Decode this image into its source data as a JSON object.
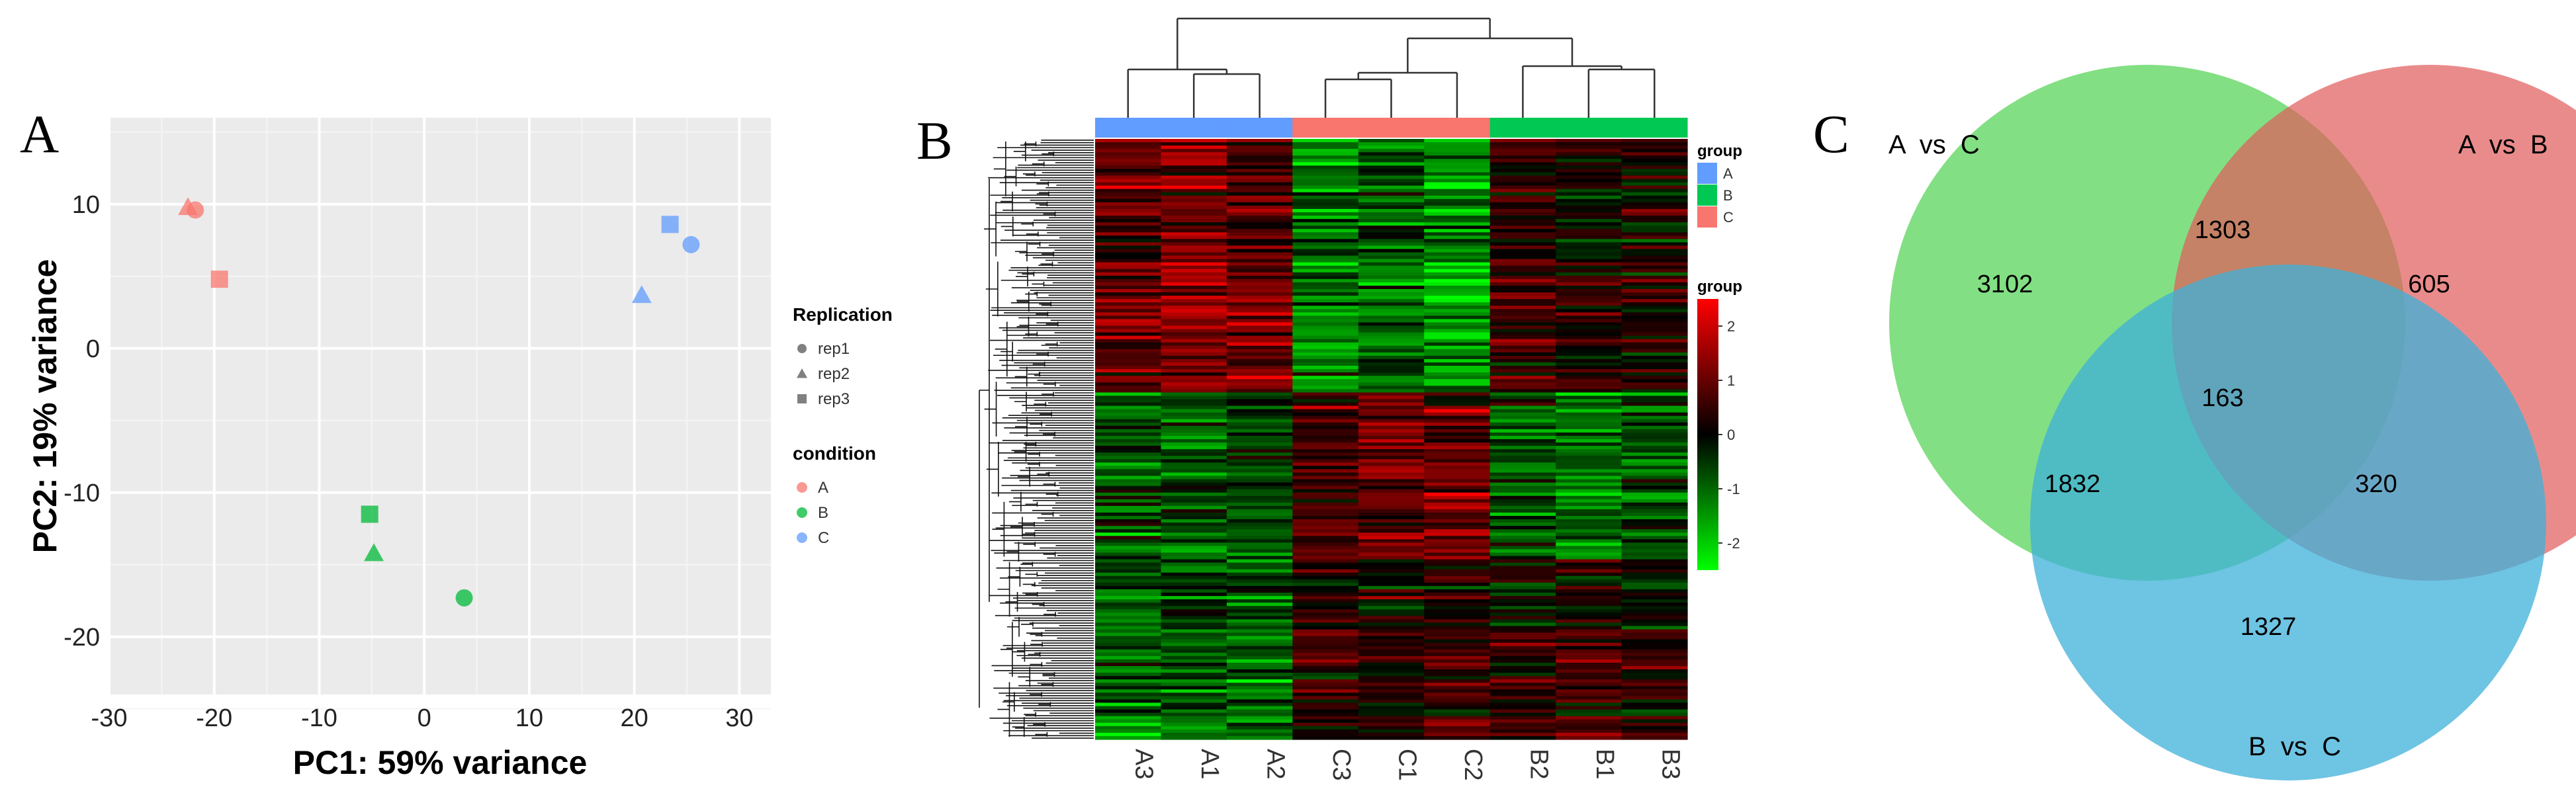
{
  "panels": {
    "a": {
      "letter": "A"
    },
    "b": {
      "letter": "B"
    },
    "c": {
      "letter": "C"
    }
  },
  "chart_data": [
    {
      "type": "scatter",
      "title": "",
      "xlabel": "PC1: 59% variance",
      "ylabel": "PC2: 19% variance",
      "xlim": [
        -30,
        33
      ],
      "ylim": [
        -24,
        16
      ],
      "xticks": [
        -30,
        -20,
        -10,
        0,
        10,
        20,
        30
      ],
      "yticks": [
        10,
        0,
        -10,
        -20
      ],
      "grid": true,
      "legend_position": "right",
      "legend_shape": {
        "title": "Replication",
        "entries": [
          {
            "label": "rep1",
            "shape": "circle"
          },
          {
            "label": "rep2",
            "shape": "triangle"
          },
          {
            "label": "rep3",
            "shape": "square"
          }
        ]
      },
      "legend_color": {
        "title": "condition",
        "entries": [
          {
            "label": "A",
            "color": "#F8766D"
          },
          {
            "label": "B",
            "color": "#00BA38"
          },
          {
            "label": "C",
            "color": "#619CFF"
          }
        ]
      },
      "points": [
        {
          "x": -22.5,
          "y": 9.8,
          "condition": "A",
          "rep": "rep2"
        },
        {
          "x": -21.8,
          "y": 9.6,
          "condition": "A",
          "rep": "rep1"
        },
        {
          "x": -19.5,
          "y": 4.8,
          "condition": "A",
          "rep": "rep3"
        },
        {
          "x": -5.2,
          "y": -11.5,
          "condition": "B",
          "rep": "rep3"
        },
        {
          "x": -4.8,
          "y": -14.2,
          "condition": "B",
          "rep": "rep2"
        },
        {
          "x": 3.8,
          "y": -17.3,
          "condition": "B",
          "rep": "rep1"
        },
        {
          "x": 20.7,
          "y": 3.7,
          "condition": "C",
          "rep": "rep2"
        },
        {
          "x": 23.4,
          "y": 8.6,
          "condition": "C",
          "rep": "rep3"
        },
        {
          "x": 25.4,
          "y": 7.2,
          "condition": "C",
          "rep": "rep1"
        }
      ]
    },
    {
      "type": "heatmap",
      "columns": [
        "A3",
        "A1",
        "A2",
        "C3",
        "C1",
        "C2",
        "B2",
        "B1",
        "B3"
      ],
      "column_groups": [
        "A",
        "A",
        "A",
        "C",
        "C",
        "C",
        "B",
        "B",
        "B"
      ],
      "legend_group": {
        "title": "group",
        "entries": [
          {
            "label": "A",
            "color": "#619CFF"
          },
          {
            "label": "B",
            "color": "#00C853"
          },
          {
            "label": "C",
            "color": "#F8766D"
          }
        ]
      },
      "colorbar": {
        "title": "group",
        "ticks": [
          2,
          1,
          0,
          -1,
          -2
        ],
        "low_color": "#00FF00",
        "mid_color": "#000000",
        "high_color": "#FF0000",
        "range": [
          -2.5,
          2.5
        ]
      },
      "row_blocks": [
        {
          "fraction": 0.42,
          "means": [
            0.9,
            1.3,
            1.0,
            -1.2,
            -1.1,
            -1.4,
            0.4,
            0.2,
            0.1
          ]
        },
        {
          "fraction": 0.28,
          "means": [
            -0.7,
            -0.8,
            -0.6,
            0.7,
            1.1,
            0.9,
            -0.8,
            -0.9,
            -0.7
          ]
        },
        {
          "fraction": 0.3,
          "means": [
            -1.0,
            -0.8,
            -1.1,
            0.5,
            0.3,
            0.5,
            0.3,
            0.6,
            0.2
          ]
        }
      ]
    },
    {
      "type": "venn",
      "sets": [
        {
          "label": "A  vs  C",
          "color": "#4ED24E"
        },
        {
          "label": "A  vs  B",
          "color": "#E15A5A"
        },
        {
          "label": "B  vs  C",
          "color": "#3DB0DA"
        }
      ],
      "regions": [
        {
          "sets": [
            "A vs C"
          ],
          "value": "3102"
        },
        {
          "sets": [
            "A vs B"
          ],
          "value": "605"
        },
        {
          "sets": [
            "B vs C"
          ],
          "value": "1327"
        },
        {
          "sets": [
            "A vs C",
            "A vs B"
          ],
          "value": "1303"
        },
        {
          "sets": [
            "A vs C",
            "B vs C"
          ],
          "value": "1832"
        },
        {
          "sets": [
            "A vs B",
            "B vs C"
          ],
          "value": "320"
        },
        {
          "sets": [
            "A vs C",
            "A vs B",
            "B vs C"
          ],
          "value": "163"
        }
      ]
    }
  ]
}
